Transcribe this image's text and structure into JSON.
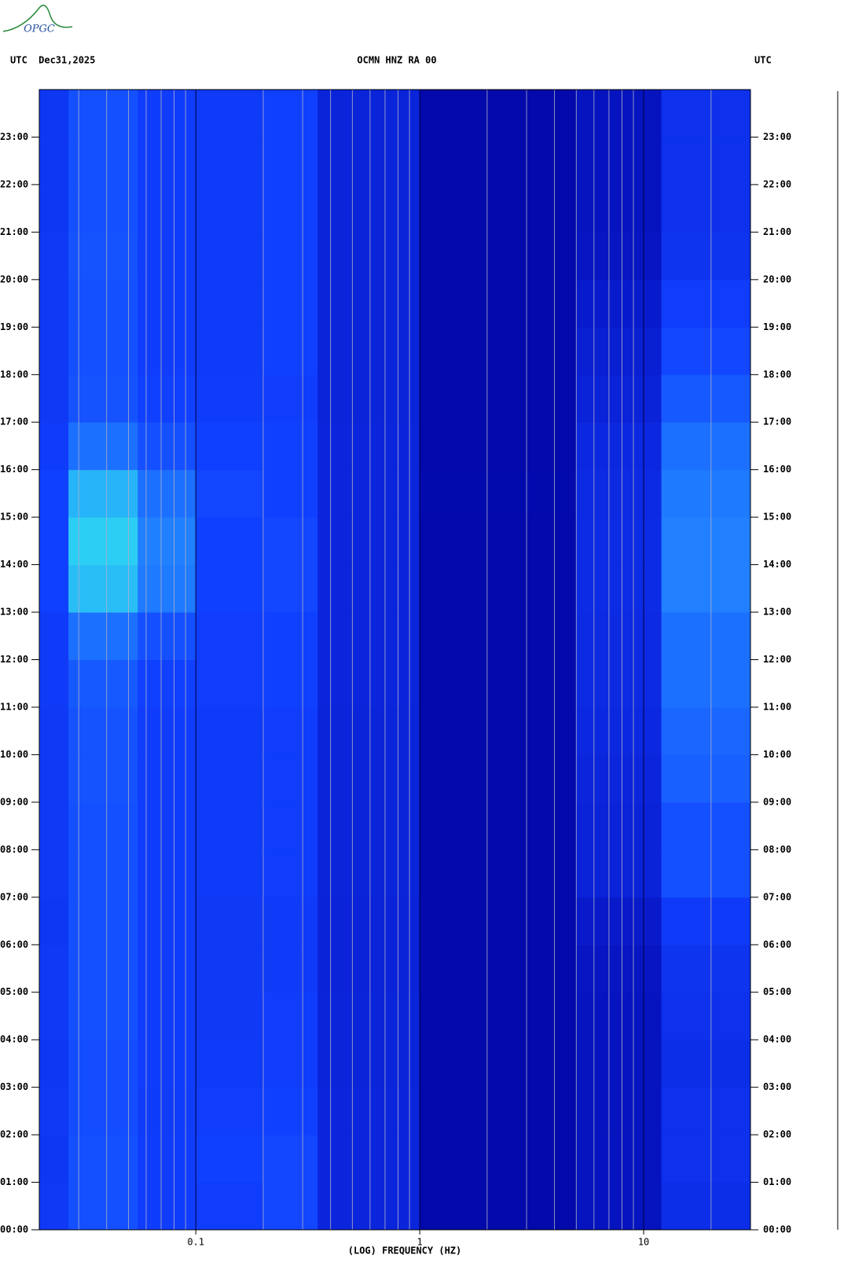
{
  "logo": "OPGC",
  "chart_data": {
    "type": "heatmap",
    "title": "OCMN HNZ RA 00",
    "date_label": "UTC  Dec31,2025",
    "right_label": "UTC",
    "x_label": "(LOG) FREQUENCY (HZ)",
    "x_scale": "log",
    "xlim": [
      0.02,
      30
    ],
    "xticks": [
      0.1,
      1,
      10
    ],
    "xminorticks": [
      0.03,
      0.04,
      0.05,
      0.06,
      0.07,
      0.08,
      0.09,
      0.2,
      0.3,
      0.4,
      0.5,
      0.6,
      0.7,
      0.8,
      0.9,
      2,
      3,
      4,
      5,
      6,
      7,
      8,
      9,
      20
    ],
    "ylim": [
      0,
      24
    ],
    "yticks": [
      {
        "value": 0,
        "label": "00:00"
      },
      {
        "value": 1,
        "label": "01:00"
      },
      {
        "value": 2,
        "label": "02:00"
      },
      {
        "value": 3,
        "label": "03:00"
      },
      {
        "value": 4,
        "label": "04:00"
      },
      {
        "value": 5,
        "label": "05:00"
      },
      {
        "value": 6,
        "label": "06:00"
      },
      {
        "value": 7,
        "label": "07:00"
      },
      {
        "value": 8,
        "label": "08:00"
      },
      {
        "value": 9,
        "label": "09:00"
      },
      {
        "value": 10,
        "label": "10:00"
      },
      {
        "value": 11,
        "label": "11:00"
      },
      {
        "value": 12,
        "label": "12:00"
      },
      {
        "value": 13,
        "label": "13:00"
      },
      {
        "value": 14,
        "label": "14:00"
      },
      {
        "value": 15,
        "label": "15:00"
      },
      {
        "value": 16,
        "label": "16:00"
      },
      {
        "value": 17,
        "label": "17:00"
      },
      {
        "value": 18,
        "label": "18:00"
      },
      {
        "value": 19,
        "label": "19:00"
      },
      {
        "value": 20,
        "label": "20:00"
      },
      {
        "value": 21,
        "label": "21:00"
      },
      {
        "value": 22,
        "label": "22:00"
      },
      {
        "value": 23,
        "label": "23:00"
      }
    ],
    "x_edges": [
      0.02,
      0.027,
      0.055,
      0.1,
      0.2,
      0.35,
      1,
      5,
      12,
      30
    ],
    "y_edges": [
      0,
      1,
      2,
      3,
      4,
      5,
      6,
      7,
      8,
      9,
      10,
      11,
      12,
      13,
      14,
      15,
      16,
      17,
      18,
      19,
      20,
      21,
      22,
      23,
      24
    ],
    "colormap": [
      "#00009a",
      "#0a22d8",
      "#1040ff",
      "#2080ff",
      "#30e8f0",
      "#ffff40"
    ],
    "z": [
      [
        0.35,
        0.45,
        0.38,
        0.38,
        0.42,
        0.22,
        0.05,
        0.12,
        0.28
      ],
      [
        0.34,
        0.45,
        0.38,
        0.4,
        0.42,
        0.22,
        0.05,
        0.12,
        0.3
      ],
      [
        0.35,
        0.44,
        0.37,
        0.38,
        0.4,
        0.22,
        0.05,
        0.12,
        0.3
      ],
      [
        0.34,
        0.44,
        0.38,
        0.36,
        0.38,
        0.21,
        0.05,
        0.12,
        0.28
      ],
      [
        0.35,
        0.45,
        0.38,
        0.35,
        0.38,
        0.21,
        0.05,
        0.12,
        0.3
      ],
      [
        0.35,
        0.45,
        0.38,
        0.35,
        0.36,
        0.2,
        0.05,
        0.13,
        0.32
      ],
      [
        0.34,
        0.45,
        0.38,
        0.35,
        0.36,
        0.2,
        0.05,
        0.15,
        0.36
      ],
      [
        0.35,
        0.45,
        0.38,
        0.36,
        0.38,
        0.21,
        0.05,
        0.2,
        0.45
      ],
      [
        0.35,
        0.45,
        0.38,
        0.36,
        0.38,
        0.21,
        0.05,
        0.2,
        0.45
      ],
      [
        0.35,
        0.46,
        0.38,
        0.36,
        0.38,
        0.21,
        0.05,
        0.22,
        0.5
      ],
      [
        0.35,
        0.46,
        0.38,
        0.36,
        0.38,
        0.21,
        0.05,
        0.24,
        0.52
      ],
      [
        0.36,
        0.48,
        0.4,
        0.38,
        0.4,
        0.22,
        0.05,
        0.25,
        0.55
      ],
      [
        0.36,
        0.55,
        0.45,
        0.38,
        0.4,
        0.22,
        0.05,
        0.25,
        0.55
      ],
      [
        0.4,
        0.72,
        0.58,
        0.4,
        0.42,
        0.22,
        0.05,
        0.26,
        0.6
      ],
      [
        0.4,
        0.75,
        0.6,
        0.4,
        0.42,
        0.22,
        0.05,
        0.26,
        0.6
      ],
      [
        0.4,
        0.7,
        0.55,
        0.42,
        0.4,
        0.22,
        0.06,
        0.25,
        0.58
      ],
      [
        0.37,
        0.55,
        0.45,
        0.4,
        0.4,
        0.22,
        0.05,
        0.24,
        0.55
      ],
      [
        0.35,
        0.46,
        0.4,
        0.37,
        0.38,
        0.21,
        0.05,
        0.2,
        0.48
      ],
      [
        0.35,
        0.45,
        0.38,
        0.36,
        0.4,
        0.21,
        0.05,
        0.18,
        0.42
      ],
      [
        0.35,
        0.45,
        0.38,
        0.36,
        0.4,
        0.21,
        0.05,
        0.16,
        0.38
      ],
      [
        0.35,
        0.46,
        0.38,
        0.36,
        0.4,
        0.21,
        0.05,
        0.13,
        0.32
      ],
      [
        0.34,
        0.45,
        0.38,
        0.36,
        0.4,
        0.21,
        0.05,
        0.12,
        0.3
      ],
      [
        0.34,
        0.45,
        0.38,
        0.36,
        0.4,
        0.21,
        0.05,
        0.12,
        0.3
      ],
      [
        0.34,
        0.45,
        0.38,
        0.36,
        0.4,
        0.21,
        0.05,
        0.12,
        0.3
      ]
    ]
  }
}
